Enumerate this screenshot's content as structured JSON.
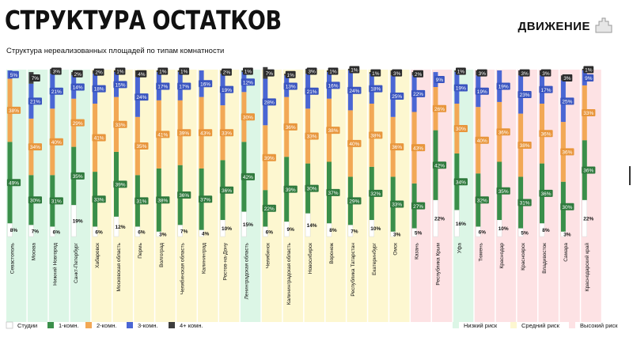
{
  "header": {
    "title": "СТРУКТУРА ОСТАТКОВ",
    "subtitle": "Структура нереализованных площадей по типам комнатности",
    "logo_text": "ДВИЖЕНИЕ",
    "logo_icon": "house-tower-icon"
  },
  "colors": {
    "studio": "#ffffff",
    "one_room": "#3a8f4a",
    "two_room": "#f2a855",
    "three_room": "#4a66d4",
    "four_plus": "#3d3d3d",
    "low_risk_bg": "#dcf6e6",
    "mid_risk_bg": "#fdf7d0",
    "high_risk_bg": "#fde2e4"
  },
  "legend": {
    "segments": [
      {
        "key": "studio",
        "label": "Студии",
        "color": "#ffffff"
      },
      {
        "key": "one_room",
        "label": "1-комн.",
        "color": "#3a8f4a"
      },
      {
        "key": "two_room",
        "label": "2-комн.",
        "color": "#f2a855"
      },
      {
        "key": "three_room",
        "label": "3-комн.",
        "color": "#4a66d4"
      },
      {
        "key": "four_plus",
        "label": "4+ комн.",
        "color": "#3d3d3d"
      }
    ],
    "risks": [
      {
        "key": "low",
        "label": "Низкий риск",
        "color": "#dcf6e6"
      },
      {
        "key": "mid",
        "label": "Средний риск",
        "color": "#fdf7d0"
      },
      {
        "key": "high",
        "label": "Высокий риск",
        "color": "#fde2e4"
      }
    ]
  },
  "chart_data": {
    "type": "bar",
    "stacked": true,
    "orientation": "vertical",
    "unit": "%",
    "ylim": [
      0,
      100
    ],
    "categories": [
      "Севастополь",
      "Москва",
      "Нижний Новгород",
      "Санкт-Петербург",
      "Хабаровск",
      "Московская область",
      "Пермь",
      "Волгоград",
      "Челябинская область",
      "Калининград",
      "Ростов-на-Дону",
      "Ленинградская область",
      "Челябинск",
      "Калининградская область",
      "Новосибирск",
      "Воронеж",
      "Республика Татарстан",
      "Екатеринбург",
      "Омск",
      "Казань",
      "Республика Крым",
      "Уфа",
      "Тюмень",
      "Краснодар",
      "Красноярск",
      "Владивосток",
      "Самара",
      "Краснодарский край"
    ],
    "risk": [
      "low",
      "low",
      "low",
      "low",
      "mid",
      "mid",
      "mid",
      "mid",
      "mid",
      "mid",
      "mid",
      "low",
      "mid",
      "mid",
      "mid",
      "mid",
      "mid",
      "mid",
      "mid",
      "high",
      "high",
      "low",
      "high",
      "high",
      "high",
      "high",
      "high",
      "high"
    ],
    "series": [
      {
        "name": "Студии",
        "values": [
          8,
          7,
          6,
          19,
          6,
          12,
          6,
          3,
          7,
          4,
          10,
          15,
          6,
          9,
          14,
          8,
          7,
          10,
          3,
          5,
          22,
          16,
          6,
          10,
          5,
          8,
          3,
          22
        ]
      },
      {
        "name": "1-комн.",
        "values": [
          49,
          30,
          31,
          35,
          33,
          39,
          31,
          38,
          36,
          37,
          36,
          42,
          22,
          39,
          30,
          37,
          29,
          32,
          33,
          27,
          42,
          34,
          32,
          35,
          31,
          36,
          30,
          36
        ]
      },
      {
        "name": "2-комн.",
        "values": [
          38,
          34,
          40,
          29,
          41,
          33,
          35,
          41,
          39,
          43,
          33,
          30,
          39,
          36,
          33,
          38,
          40,
          38,
          36,
          43,
          26,
          30,
          40,
          36,
          38,
          36,
          36,
          33
        ]
      },
      {
        "name": "3-комн.",
        "values": [
          5,
          21,
          21,
          14,
          18,
          15,
          24,
          17,
          17,
          16,
          19,
          12,
          28,
          13,
          21,
          16,
          24,
          18,
          25,
          22,
          9,
          19,
          19,
          19,
          23,
          17,
          25,
          9
        ]
      },
      {
        "name": "4+ комн.",
        "values": [
          0,
          7,
          3,
          2,
          2,
          1,
          4,
          1,
          1,
          0,
          2,
          1,
          7,
          1,
          3,
          1,
          1,
          1,
          3,
          2,
          0,
          1,
          3,
          0,
          3,
          3,
          3,
          1
        ]
      }
    ]
  }
}
